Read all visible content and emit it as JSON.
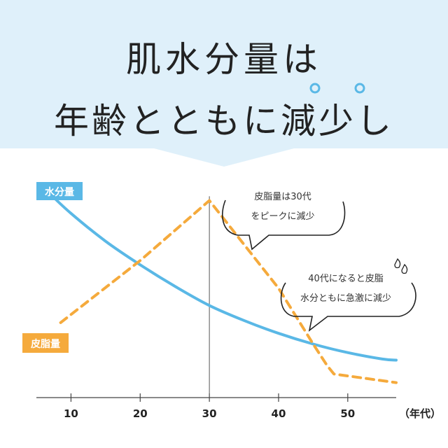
{
  "header": {
    "line1": "肌水分量は",
    "line2": "年齢とともに減少し"
  },
  "chart_data": {
    "type": "line",
    "x_ticks": [
      10,
      20,
      30,
      40,
      50
    ],
    "x_unit_label": "（年代）",
    "xlim": [
      5,
      57
    ],
    "ylim": [
      0,
      100
    ],
    "peak_marker_x": 30,
    "series": [
      {
        "name": "水分量",
        "color": "#5ab8e6",
        "style": "solid",
        "points": [
          [
            7,
            95
          ],
          [
            10,
            86
          ],
          [
            15,
            73
          ],
          [
            20,
            62
          ],
          [
            25,
            52
          ],
          [
            30,
            43
          ],
          [
            35,
            36
          ],
          [
            40,
            30
          ],
          [
            45,
            25
          ],
          [
            50,
            21
          ],
          [
            55,
            18
          ],
          [
            57,
            17.5
          ]
        ]
      },
      {
        "name": "皮脂量",
        "color": "#f5aa3c",
        "style": "dashed",
        "points": [
          [
            8.5,
            35
          ],
          [
            20,
            64
          ],
          [
            30,
            92
          ],
          [
            40,
            51
          ],
          [
            45,
            25
          ],
          [
            47,
            15
          ],
          [
            48,
            11
          ],
          [
            57,
            7
          ]
        ]
      }
    ],
    "annotations": [
      {
        "lines": [
          "皮脂量は30代",
          "をピークに減少"
        ]
      },
      {
        "lines": [
          "40代になると皮脂",
          "水分ともに急激に減少"
        ]
      }
    ]
  },
  "colors": {
    "header_bg": "#dff0fa",
    "water": "#5ab8e6",
    "sebum": "#f5aa3c",
    "axis": "#444444"
  }
}
